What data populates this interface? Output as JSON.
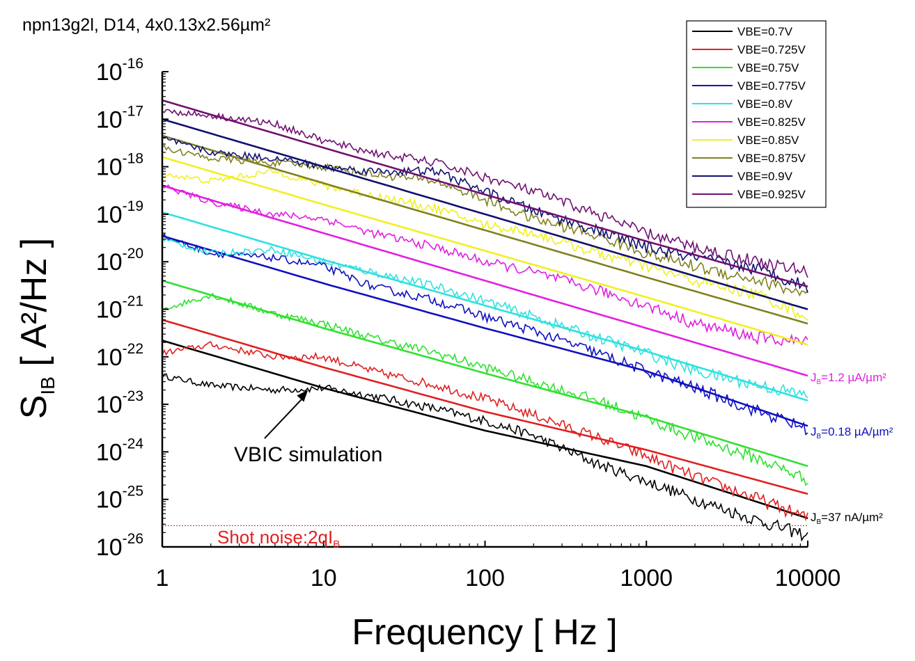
{
  "chart_data": {
    "type": "line",
    "title": "npn13g2l, D14, 4x0.13x2.56µm²",
    "xlabel": "Frequency [ Hz ]",
    "ylabel": {
      "main": "S",
      "sub": "IB",
      "rest": " [ A²/Hz ]"
    },
    "x_scale": "log",
    "y_scale": "log",
    "xlim": [
      1,
      10000
    ],
    "ylim": [
      1e-26,
      1e-16
    ],
    "x_ticks": [
      1,
      10,
      100,
      1000,
      10000
    ],
    "x_tick_labels": [
      "1",
      "10",
      "100",
      "1000",
      "10000"
    ],
    "y_ticks": [
      {
        "value": 1e-16,
        "base": "10",
        "exp": "-16"
      },
      {
        "value": 1e-17,
        "base": "10",
        "exp": "-17"
      },
      {
        "value": 1e-18,
        "base": "10",
        "exp": "-18"
      },
      {
        "value": 1e-19,
        "base": "10",
        "exp": "-19"
      },
      {
        "value": 1e-20,
        "base": "10",
        "exp": "-20"
      },
      {
        "value": 1e-21,
        "base": "10",
        "exp": "-21"
      },
      {
        "value": 1e-22,
        "base": "10",
        "exp": "-22"
      },
      {
        "value": 1e-23,
        "base": "10",
        "exp": "-23"
      },
      {
        "value": 1e-24,
        "base": "10",
        "exp": "-24"
      },
      {
        "value": 1e-25,
        "base": "10",
        "exp": "-25"
      },
      {
        "value": 1e-26,
        "base": "10",
        "exp": "-26"
      }
    ],
    "legend_position": "top-right",
    "grid": false,
    "series": [
      {
        "name": "VBE=0.7V",
        "color": "#000000",
        "measured": {
          "x": [
            1,
            2,
            5,
            10,
            20,
            50,
            100,
            200,
            500,
            1000,
            2000,
            5000,
            10000
          ],
          "y": [
            4e-23,
            2.5e-23,
            2e-23,
            2.2e-23,
            1.5e-23,
            8e-24,
            4.5e-24,
            2.2e-24,
            5.5e-25,
            2.4e-25,
            1e-25,
            3.5e-26,
            1.7e-26
          ]
        },
        "simulation": {
          "x": [
            1,
            10,
            100,
            1000,
            10000
          ],
          "y": [
            2.2e-22,
            2.2e-23,
            2.8e-24,
            5e-25,
            4e-26
          ]
        }
      },
      {
        "name": "VBE=0.725V",
        "color": "#e02020",
        "measured": {
          "x": [
            1,
            2,
            5,
            10,
            20,
            50,
            100,
            200,
            500,
            1000,
            2000,
            5000,
            10000
          ],
          "y": [
            1.2e-22,
            1.8e-22,
            1e-22,
            1e-22,
            5e-23,
            2.5e-23,
            1.3e-23,
            6e-24,
            2e-24,
            8e-25,
            3e-25,
            1e-25,
            4e-26
          ]
        },
        "simulation": {
          "x": [
            1,
            10,
            100,
            1000,
            10000
          ],
          "y": [
            6e-22,
            6e-23,
            7e-24,
            1.1e-24,
            1.3e-25
          ]
        }
      },
      {
        "name": "VBE=0.75V",
        "color": "#30e030",
        "measured": {
          "x": [
            1,
            2,
            5,
            10,
            20,
            50,
            100,
            200,
            500,
            1000,
            2000,
            5000,
            10000
          ],
          "y": [
            1e-21,
            2e-21,
            8e-22,
            5e-22,
            2.5e-22,
            1.2e-22,
            6e-23,
            3e-23,
            1.2e-23,
            5e-24,
            2e-24,
            7e-25,
            2.6e-25
          ]
        },
        "simulation": {
          "x": [
            1,
            10,
            100,
            1000,
            10000
          ],
          "y": [
            4e-21,
            4e-22,
            4.5e-23,
            5.5e-24,
            5e-25
          ]
        }
      },
      {
        "name": "VBE=0.775V",
        "color": "#1010c0",
        "measured": {
          "x": [
            1,
            2,
            5,
            10,
            20,
            50,
            100,
            200,
            500,
            1000,
            2000,
            5000,
            10000
          ],
          "y": [
            3.5e-20,
            1.5e-20,
            1.2e-20,
            8e-21,
            3e-21,
            1.5e-21,
            7e-22,
            3.5e-22,
            1.2e-22,
            5e-23,
            2.2e-23,
            7e-24,
            3e-24
          ]
        },
        "simulation": {
          "x": [
            1,
            10,
            100,
            1000,
            10000
          ],
          "y": [
            3.5e-20,
            3.5e-21,
            4e-22,
            5e-23,
            3.5e-24
          ]
        }
      },
      {
        "name": "VBE=0.8V",
        "color": "#30e0e0",
        "measured": {
          "x": [
            1,
            2,
            5,
            10,
            20,
            50,
            100,
            200,
            500,
            1000,
            2000,
            5000,
            10000
          ],
          "y": [
            3e-20,
            1.5e-20,
            1.8e-20,
            1e-20,
            6e-21,
            3e-21,
            1.5e-21,
            7e-22,
            2.5e-22,
            1.2e-22,
            5e-23,
            2.5e-23,
            1.5e-23
          ]
        },
        "simulation": {
          "x": [
            1,
            10,
            100,
            1000,
            10000
          ],
          "y": [
            1.1e-19,
            1.1e-20,
            1.2e-21,
            1.3e-22,
            1.2e-23
          ]
        }
      },
      {
        "name": "VBE=0.825V",
        "color": "#e020e0",
        "measured": {
          "x": [
            1,
            2,
            5,
            10,
            20,
            50,
            100,
            200,
            500,
            1000,
            2000,
            5000,
            10000
          ],
          "y": [
            4e-19,
            1.8e-19,
            1e-19,
            8e-20,
            4e-20,
            2e-20,
            1e-20,
            6e-21,
            2.5e-21,
            1.2e-21,
            5e-22,
            2.5e-22,
            2e-22
          ]
        },
        "simulation": {
          "x": [
            1,
            10,
            100,
            1000,
            10000
          ],
          "y": [
            4e-19,
            4e-20,
            4e-21,
            4e-22,
            4e-23
          ]
        }
      },
      {
        "name": "VBE=0.85V",
        "color": "#f0f020",
        "measured": {
          "x": [
            1,
            2,
            5,
            10,
            20,
            50,
            100,
            200,
            500,
            1000,
            2000,
            5000,
            10000
          ],
          "y": [
            7e-19,
            5e-19,
            8e-19,
            4e-19,
            2.5e-19,
            1.3e-19,
            6e-20,
            4e-20,
            1.5e-20,
            8e-21,
            4e-21,
            2e-21,
            7e-22
          ]
        },
        "simulation": {
          "x": [
            1,
            10,
            100,
            1000,
            10000
          ],
          "y": [
            1.6e-18,
            1.6e-19,
            1.7e-20,
            1.8e-21,
            1.8e-22
          ]
        }
      },
      {
        "name": "VBE=0.875V",
        "color": "#808020",
        "measured": {
          "x": [
            1,
            2,
            5,
            10,
            20,
            50,
            100,
            200,
            500,
            1000,
            2000,
            5000,
            10000
          ],
          "y": [
            2.5e-18,
            1.5e-18,
            1.2e-18,
            1e-18,
            7e-19,
            5e-19,
            2e-19,
            8e-20,
            3.5e-20,
            1.5e-20,
            8e-21,
            4e-21,
            2e-21
          ]
        },
        "simulation": {
          "x": [
            1,
            10,
            100,
            1000,
            10000
          ],
          "y": [
            4.5e-18,
            4.5e-19,
            4.6e-20,
            4.7e-21,
            5e-22
          ]
        }
      },
      {
        "name": "VBE=0.9V",
        "color": "#101070",
        "measured": {
          "x": [
            1,
            2,
            5,
            10,
            20,
            50,
            100,
            200,
            500,
            1000,
            2000,
            5000,
            10000
          ],
          "y": [
            4e-18,
            2e-18,
            1.5e-18,
            1e-18,
            8e-19,
            8e-19,
            3e-19,
            1.2e-19,
            4.5e-20,
            2e-20,
            1.2e-20,
            7e-21,
            3e-21
          ]
        },
        "simulation": {
          "x": [
            1,
            10,
            100,
            1000,
            10000
          ],
          "y": [
            1e-17,
            1e-18,
            1e-19,
            1e-20,
            1e-21
          ]
        }
      },
      {
        "name": "VBE=0.925V",
        "color": "#701070",
        "measured": {
          "x": [
            1,
            2,
            5,
            10,
            20,
            50,
            100,
            200,
            500,
            1000,
            2000,
            5000,
            10000
          ],
          "y": [
            1.5e-17,
            1.2e-17,
            8e-18,
            3.5e-18,
            2e-18,
            1.2e-18,
            6e-19,
            3e-19,
            1e-19,
            4e-20,
            2e-20,
            1e-20,
            6e-21
          ]
        },
        "simulation": {
          "x": [
            1,
            10,
            100,
            1000,
            10000
          ],
          "y": [
            2.5e-17,
            2.5e-18,
            2.6e-19,
            2.7e-20,
            3e-21
          ]
        }
      }
    ],
    "shot_noise": {
      "value": 2.8e-26,
      "label": "Shot noise:2qI",
      "label_sub": "B",
      "color": "#e02020"
    },
    "annotations": [
      {
        "text": "VBIC simulation",
        "color": "#000000",
        "arrow_to": {
          "x": 8,
          "y": 2e-23
        }
      },
      {
        "prefix": "J",
        "sub": "B",
        "text": "=1.2 µA/µm²",
        "color": "#e020e0"
      },
      {
        "prefix": "J",
        "sub": "B",
        "text": "=0.18 µA/µm²",
        "color": "#1010c0"
      },
      {
        "prefix": "J",
        "sub": "B",
        "text": "=37 nA/µm²",
        "color": "#000000"
      }
    ]
  }
}
